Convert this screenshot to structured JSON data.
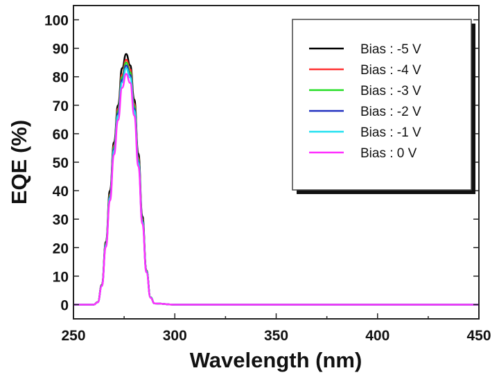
{
  "chart_data": {
    "type": "line",
    "xlabel": "Wavelength (nm)",
    "ylabel": "EQE (%)",
    "xlim": [
      250,
      450
    ],
    "ylim": [
      -5,
      105
    ],
    "xticks": [
      250,
      300,
      350,
      400,
      450
    ],
    "yticks": [
      0,
      10,
      20,
      30,
      40,
      50,
      60,
      70,
      80,
      90,
      100
    ],
    "grid": false,
    "legend_position": "top-right",
    "x": [
      250,
      260,
      262,
      264,
      266,
      268,
      270,
      272,
      274,
      276,
      278,
      280,
      282,
      284,
      286,
      288,
      290,
      300,
      450
    ],
    "series": [
      {
        "name": "Bias : -5 V",
        "color": "#000000",
        "values": [
          0,
          0,
          0.9,
          7,
          22,
          40,
          57,
          70,
          83,
          88,
          84,
          72,
          53,
          31,
          12,
          2.6,
          0.4,
          0,
          0
        ]
      },
      {
        "name": "Bias : -4 V",
        "color": "#ff3030",
        "values": [
          0,
          0,
          0.9,
          6.9,
          21.5,
          38.7,
          55.9,
          68.8,
          80.8,
          86,
          82.6,
          70.5,
          51.6,
          30.1,
          12,
          2.6,
          0.4,
          0,
          0
        ]
      },
      {
        "name": "Bias : -3 V",
        "color": "#22dd22",
        "values": [
          0,
          0,
          0.9,
          6.8,
          21.3,
          38.3,
          55.3,
          68,
          79.9,
          85,
          81.6,
          69.7,
          51,
          29.8,
          11.9,
          2.6,
          0.4,
          0,
          0
        ]
      },
      {
        "name": "Bias : -2 V",
        "color": "#2030c0",
        "values": [
          0,
          0,
          0.8,
          6.7,
          21,
          37.8,
          54.6,
          67.2,
          79,
          84,
          80.6,
          68.9,
          50.4,
          29.4,
          11.8,
          2.5,
          0.4,
          0,
          0
        ]
      },
      {
        "name": "Bias : -1 V",
        "color": "#20e0f0",
        "values": [
          0,
          0,
          0.8,
          6.6,
          20.8,
          37.4,
          54,
          66.4,
          78,
          83,
          79.7,
          68.1,
          49.8,
          29,
          11.6,
          2.5,
          0.4,
          0,
          0
        ]
      },
      {
        "name": "Bias : 0 V",
        "color": "#ff30ff",
        "values": [
          0,
          0,
          0.8,
          6.5,
          20.3,
          36.5,
          52.7,
          64.8,
          76.1,
          81,
          77.8,
          66.4,
          48.6,
          28.4,
          11.3,
          2.4,
          0.4,
          0,
          0
        ]
      }
    ]
  }
}
